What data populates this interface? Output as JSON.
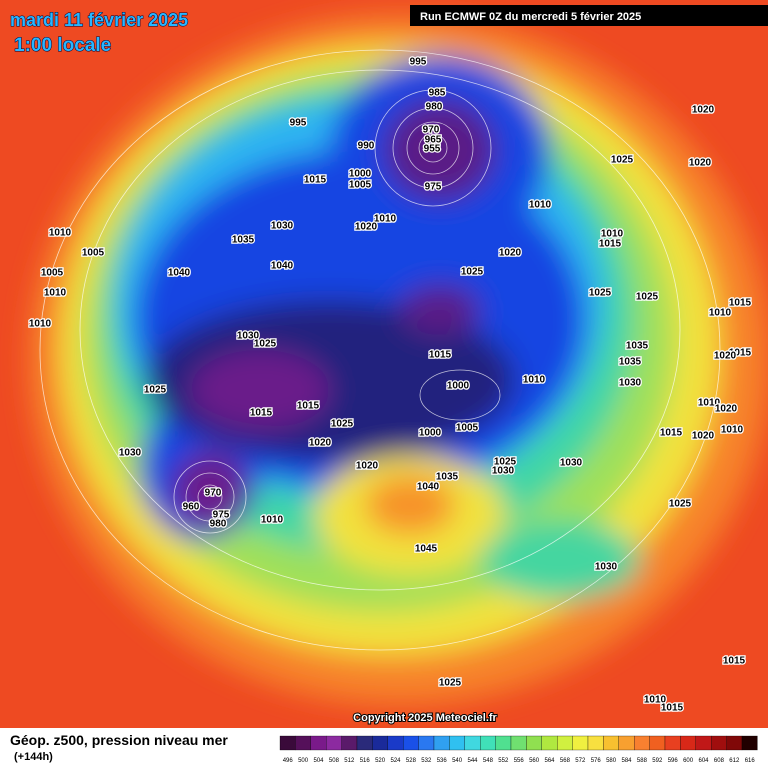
{
  "header": {
    "date": "mardi 11 février 2025",
    "time": "1:00 locale",
    "run": "Run ECMWF 0Z du mercredi 5 février 2025"
  },
  "copyright": "Copyright 2025 Meteociel.fr",
  "legend": {
    "title": "Géop. z500, pression niveau mer",
    "lead": "(+144h)",
    "scale": [
      "496",
      "500",
      "504",
      "508",
      "512",
      "516",
      "520",
      "524",
      "528",
      "532",
      "536",
      "540",
      "544",
      "548",
      "552",
      "556",
      "560",
      "564",
      "568",
      "572",
      "576",
      "580",
      "584",
      "588",
      "592",
      "596",
      "600",
      "604",
      "608",
      "612",
      "616"
    ]
  },
  "isobar_labels": [
    "995",
    "985",
    "980",
    "995",
    "990",
    "970",
    "965",
    "955",
    "975",
    "1015",
    "1000",
    "1005",
    "1020",
    "1025",
    "1020",
    "1010",
    "1010",
    "1020",
    "1030",
    "1035",
    "1010",
    "1005",
    "1040",
    "1040",
    "1025",
    "1020",
    "1010",
    "1015",
    "1005",
    "1010",
    "1025",
    "1025",
    "1010",
    "1030",
    "1025",
    "1015",
    "1035",
    "1035",
    "1030",
    "1000",
    "1010",
    "1025",
    "1015",
    "1015",
    "1025",
    "1020",
    "1000",
    "1005",
    "1030",
    "1025",
    "1030",
    "1030",
    "1020",
    "1035",
    "1040",
    "970",
    "960",
    "975",
    "980",
    "1010",
    "1045",
    "1030",
    "1025",
    "1015",
    "1020",
    "1015",
    "1010",
    "1015",
    "1020",
    "1010",
    "1020",
    "1010",
    "1015",
    "1025",
    "1010",
    "1015"
  ]
}
